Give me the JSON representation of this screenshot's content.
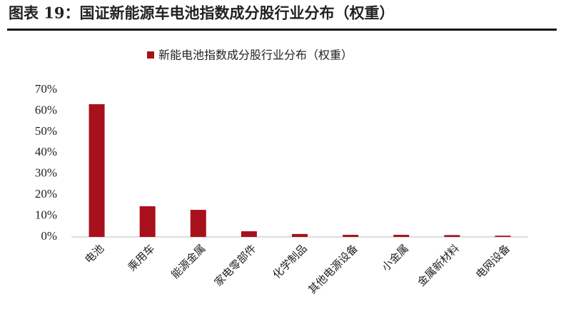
{
  "chart_data": {
    "type": "bar",
    "title": "图表 19：国证新能源车电池指数成分股行业分布（权重）",
    "categories": [
      "电池",
      "乘用车",
      "能源金属",
      "家电零部件",
      "化学制品",
      "其他电源设备",
      "小金属",
      "金属新材料",
      "电网设备"
    ],
    "series": [
      {
        "name": "新能电池指数成分股行业分布（权重）",
        "color": "#a8111b",
        "values": [
          63.2,
          14.6,
          12.9,
          2.7,
          1.4,
          1.0,
          1.0,
          0.9,
          0.6
        ]
      }
    ],
    "ylim": [
      0,
      70
    ],
    "yticks": [
      {
        "value": 0,
        "label": "0%"
      },
      {
        "value": 10,
        "label": "10%"
      },
      {
        "value": 20,
        "label": "20%"
      },
      {
        "value": 30,
        "label": "30%"
      },
      {
        "value": 40,
        "label": "40%"
      },
      {
        "value": 50,
        "label": "50%"
      },
      {
        "value": 60,
        "label": "60%"
      },
      {
        "value": 70,
        "label": "70%"
      }
    ],
    "grid": false,
    "legend": "top"
  }
}
